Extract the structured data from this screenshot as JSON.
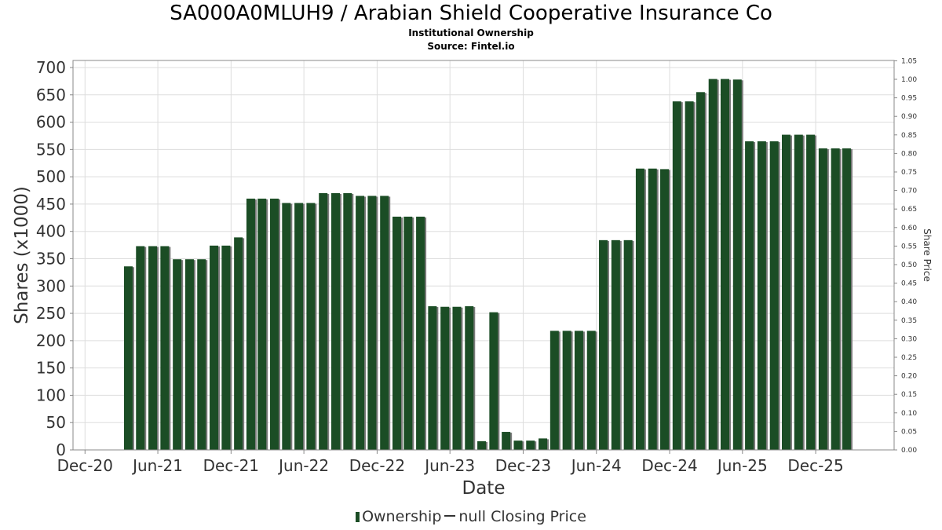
{
  "chart_data": {
    "type": "bar",
    "title": "SA000A0MLUH9 / Arabian Shield Cooperative Insurance Co",
    "subtitle": "Institutional Ownership",
    "source": "Source: Fintel.io",
    "xlabel": "Date",
    "ylabel": "Shares (x1000)",
    "y2label": "Share Price",
    "ylim": [
      0,
      700
    ],
    "y2lim": [
      0,
      1.05
    ],
    "yticks": [
      "0",
      "50",
      "100",
      "150",
      "200",
      "250",
      "300",
      "350",
      "400",
      "450",
      "500",
      "550",
      "600",
      "650",
      "700"
    ],
    "y2ticks": [
      "0.00",
      "0.05",
      "0.10",
      "0.15",
      "0.20",
      "0.25",
      "0.30",
      "0.35",
      "0.40",
      "0.45",
      "0.50",
      "0.55",
      "0.60",
      "0.65",
      "0.70",
      "0.75",
      "0.80",
      "0.85",
      "0.90",
      "0.95",
      "1.00",
      "1.05"
    ],
    "xticks": [
      {
        "label": "Dec-20",
        "date": "2020-12-01"
      },
      {
        "label": "Jun-21",
        "date": "2021-06-01"
      },
      {
        "label": "Dec-21",
        "date": "2021-12-01"
      },
      {
        "label": "Jun-22",
        "date": "2022-06-01"
      },
      {
        "label": "Dec-22",
        "date": "2022-12-01"
      },
      {
        "label": "Jun-23",
        "date": "2023-06-01"
      },
      {
        "label": "Dec-23",
        "date": "2023-12-01"
      },
      {
        "label": "Jun-24",
        "date": "2024-06-01"
      },
      {
        "label": "Dec-24",
        "date": "2024-12-01"
      },
      {
        "label": "Jun-25",
        "date": "2025-06-01"
      },
      {
        "label": "Dec-25",
        "date": "2025-12-01"
      }
    ],
    "grid": true,
    "legend_position": "bottom",
    "colors": {
      "bar": "#1b4d25",
      "bar_shadow": "#7a7a7a",
      "grid": "#dddddd",
      "axis": "#888888"
    },
    "series": [
      {
        "name": "Ownership",
        "x": [
          "2021-03-31",
          "2021-04-30",
          "2021-05-31",
          "2021-06-30",
          "2021-07-31",
          "2021-08-31",
          "2021-09-30",
          "2021-10-31",
          "2021-11-30",
          "2021-12-31",
          "2022-01-31",
          "2022-02-28",
          "2022-03-31",
          "2022-04-30",
          "2022-05-31",
          "2022-06-30",
          "2022-07-31",
          "2022-08-31",
          "2022-09-30",
          "2022-10-31",
          "2022-11-30",
          "2022-12-31",
          "2023-01-31",
          "2023-02-28",
          "2023-03-31",
          "2023-04-30",
          "2023-05-31",
          "2023-06-30",
          "2023-07-31",
          "2023-08-31",
          "2023-09-30",
          "2023-10-31",
          "2023-11-30",
          "2023-12-31",
          "2024-01-31",
          "2024-02-29",
          "2024-03-31",
          "2024-04-30",
          "2024-05-31",
          "2024-06-30",
          "2024-07-31",
          "2024-08-31",
          "2024-09-30",
          "2024-10-31",
          "2024-11-30",
          "2024-12-31",
          "2025-01-31",
          "2025-02-28",
          "2025-03-31",
          "2025-04-30",
          "2025-05-31",
          "2025-06-30",
          "2025-07-31",
          "2025-08-31",
          "2025-09-30",
          "2025-10-31",
          "2025-11-30",
          "2025-12-31",
          "2026-01-31",
          "2026-02-28"
        ],
        "values": [
          336,
          373,
          373,
          373,
          349,
          349,
          349,
          374,
          374,
          389,
          460,
          460,
          460,
          452,
          452,
          452,
          470,
          470,
          470,
          465,
          465,
          465,
          427,
          427,
          427,
          263,
          262,
          262,
          263,
          16,
          252,
          33,
          17,
          17,
          21,
          218,
          218,
          218,
          218,
          384,
          384,
          384,
          515,
          515,
          514,
          638,
          638,
          655,
          679,
          679,
          678,
          565,
          565,
          565,
          577,
          577,
          577,
          552,
          552,
          552
        ]
      },
      {
        "name": "null Closing Price",
        "values": []
      }
    ]
  },
  "legend": {
    "ownership_label": "Ownership",
    "price_label": "null Closing Price"
  }
}
